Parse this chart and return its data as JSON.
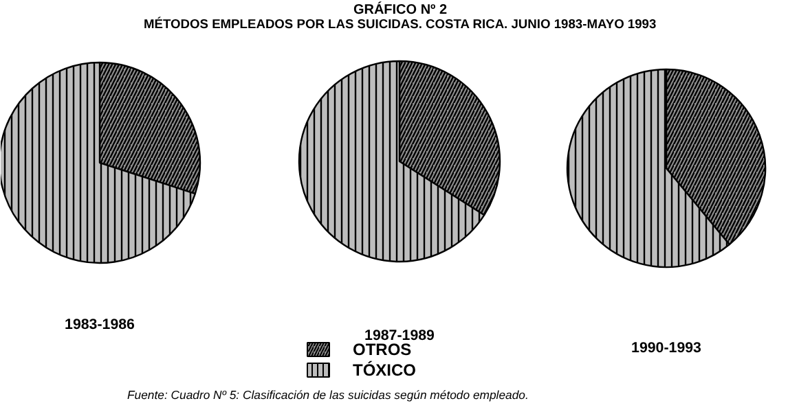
{
  "chart_data": {
    "type": "pie",
    "title": "GRÁFICO Nº 2",
    "subtitle": "MÉTODOS EMPLEADOS POR LAS SUICIDAS. COSTA RICA. JUNIO 1983-MAYO 1993",
    "categories": [
      "OTROS",
      "TÓXICO"
    ],
    "colors": [
      "#8c8c8c",
      "#bdbdbd"
    ],
    "legend": "bottom",
    "series": [
      {
        "name": "1983-1986",
        "values": [
          30,
          70
        ]
      },
      {
        "name": "1987-1989",
        "values": [
          34,
          66
        ]
      },
      {
        "name": "1990-1993",
        "values": [
          39,
          61
        ]
      }
    ],
    "annotations": [
      "Fuente:    Cuadro Nº 5: Clasificación de las suicidas según método empleado."
    ]
  }
}
